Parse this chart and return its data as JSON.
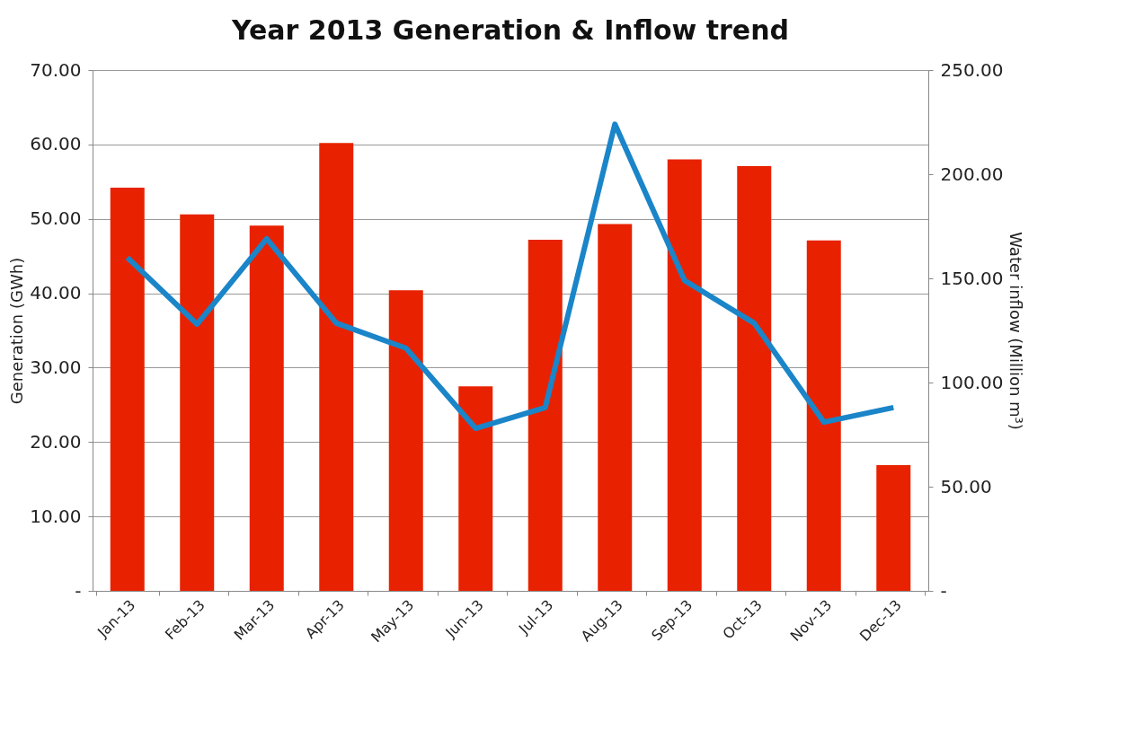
{
  "chart_data": {
    "type": "bar",
    "title": "Year 2013 Generation & Inflow trend",
    "ylabel": "Generation (GWh)",
    "y2label": "Water inflow (Million m³)",
    "categories": [
      "Jan-13",
      "Feb-13",
      "Mar-13",
      "Apr-13",
      "May-13",
      "Jun-13",
      "Jul-13",
      "Aug-13",
      "Sep-13",
      "Oct-13",
      "Nov-13",
      "Dec-13"
    ],
    "series": [
      {
        "color": "#e82200",
        "values": [
          54.2,
          50.6,
          49.1,
          60.2,
          40.4,
          27.5,
          47.2,
          49.3,
          58.0,
          57.1,
          47.1,
          16.9
        ]
      },
      {
        "type": "line",
        "axis": "y2",
        "color": "#1a85c8",
        "values": [
          160,
          128,
          169,
          128.5,
          116.5,
          78,
          88,
          224,
          149,
          128.5,
          81,
          88
        ]
      }
    ],
    "ylim": [
      0,
      70
    ],
    "yticks": [
      {
        "value": 0,
        "label": "-"
      },
      {
        "value": 10,
        "label": "10.00"
      },
      {
        "value": 20,
        "label": "20.00"
      },
      {
        "value": 30,
        "label": "30.00"
      },
      {
        "value": 40,
        "label": "40.00"
      },
      {
        "value": 50,
        "label": "50.00"
      },
      {
        "value": 60,
        "label": "60.00"
      },
      {
        "value": 70,
        "label": "70.00"
      }
    ],
    "y2lim": [
      0,
      250
    ],
    "y2ticks": [
      {
        "value": 0,
        "label": "-"
      },
      {
        "value": 50,
        "label": "50.00"
      },
      {
        "value": 100,
        "label": "100.00"
      },
      {
        "value": 150,
        "label": "150.00"
      },
      {
        "value": 200,
        "label": "200.00"
      },
      {
        "value": 250,
        "label": "250.00"
      }
    ],
    "grid": "y",
    "marker": "none",
    "line_style": "solid"
  }
}
